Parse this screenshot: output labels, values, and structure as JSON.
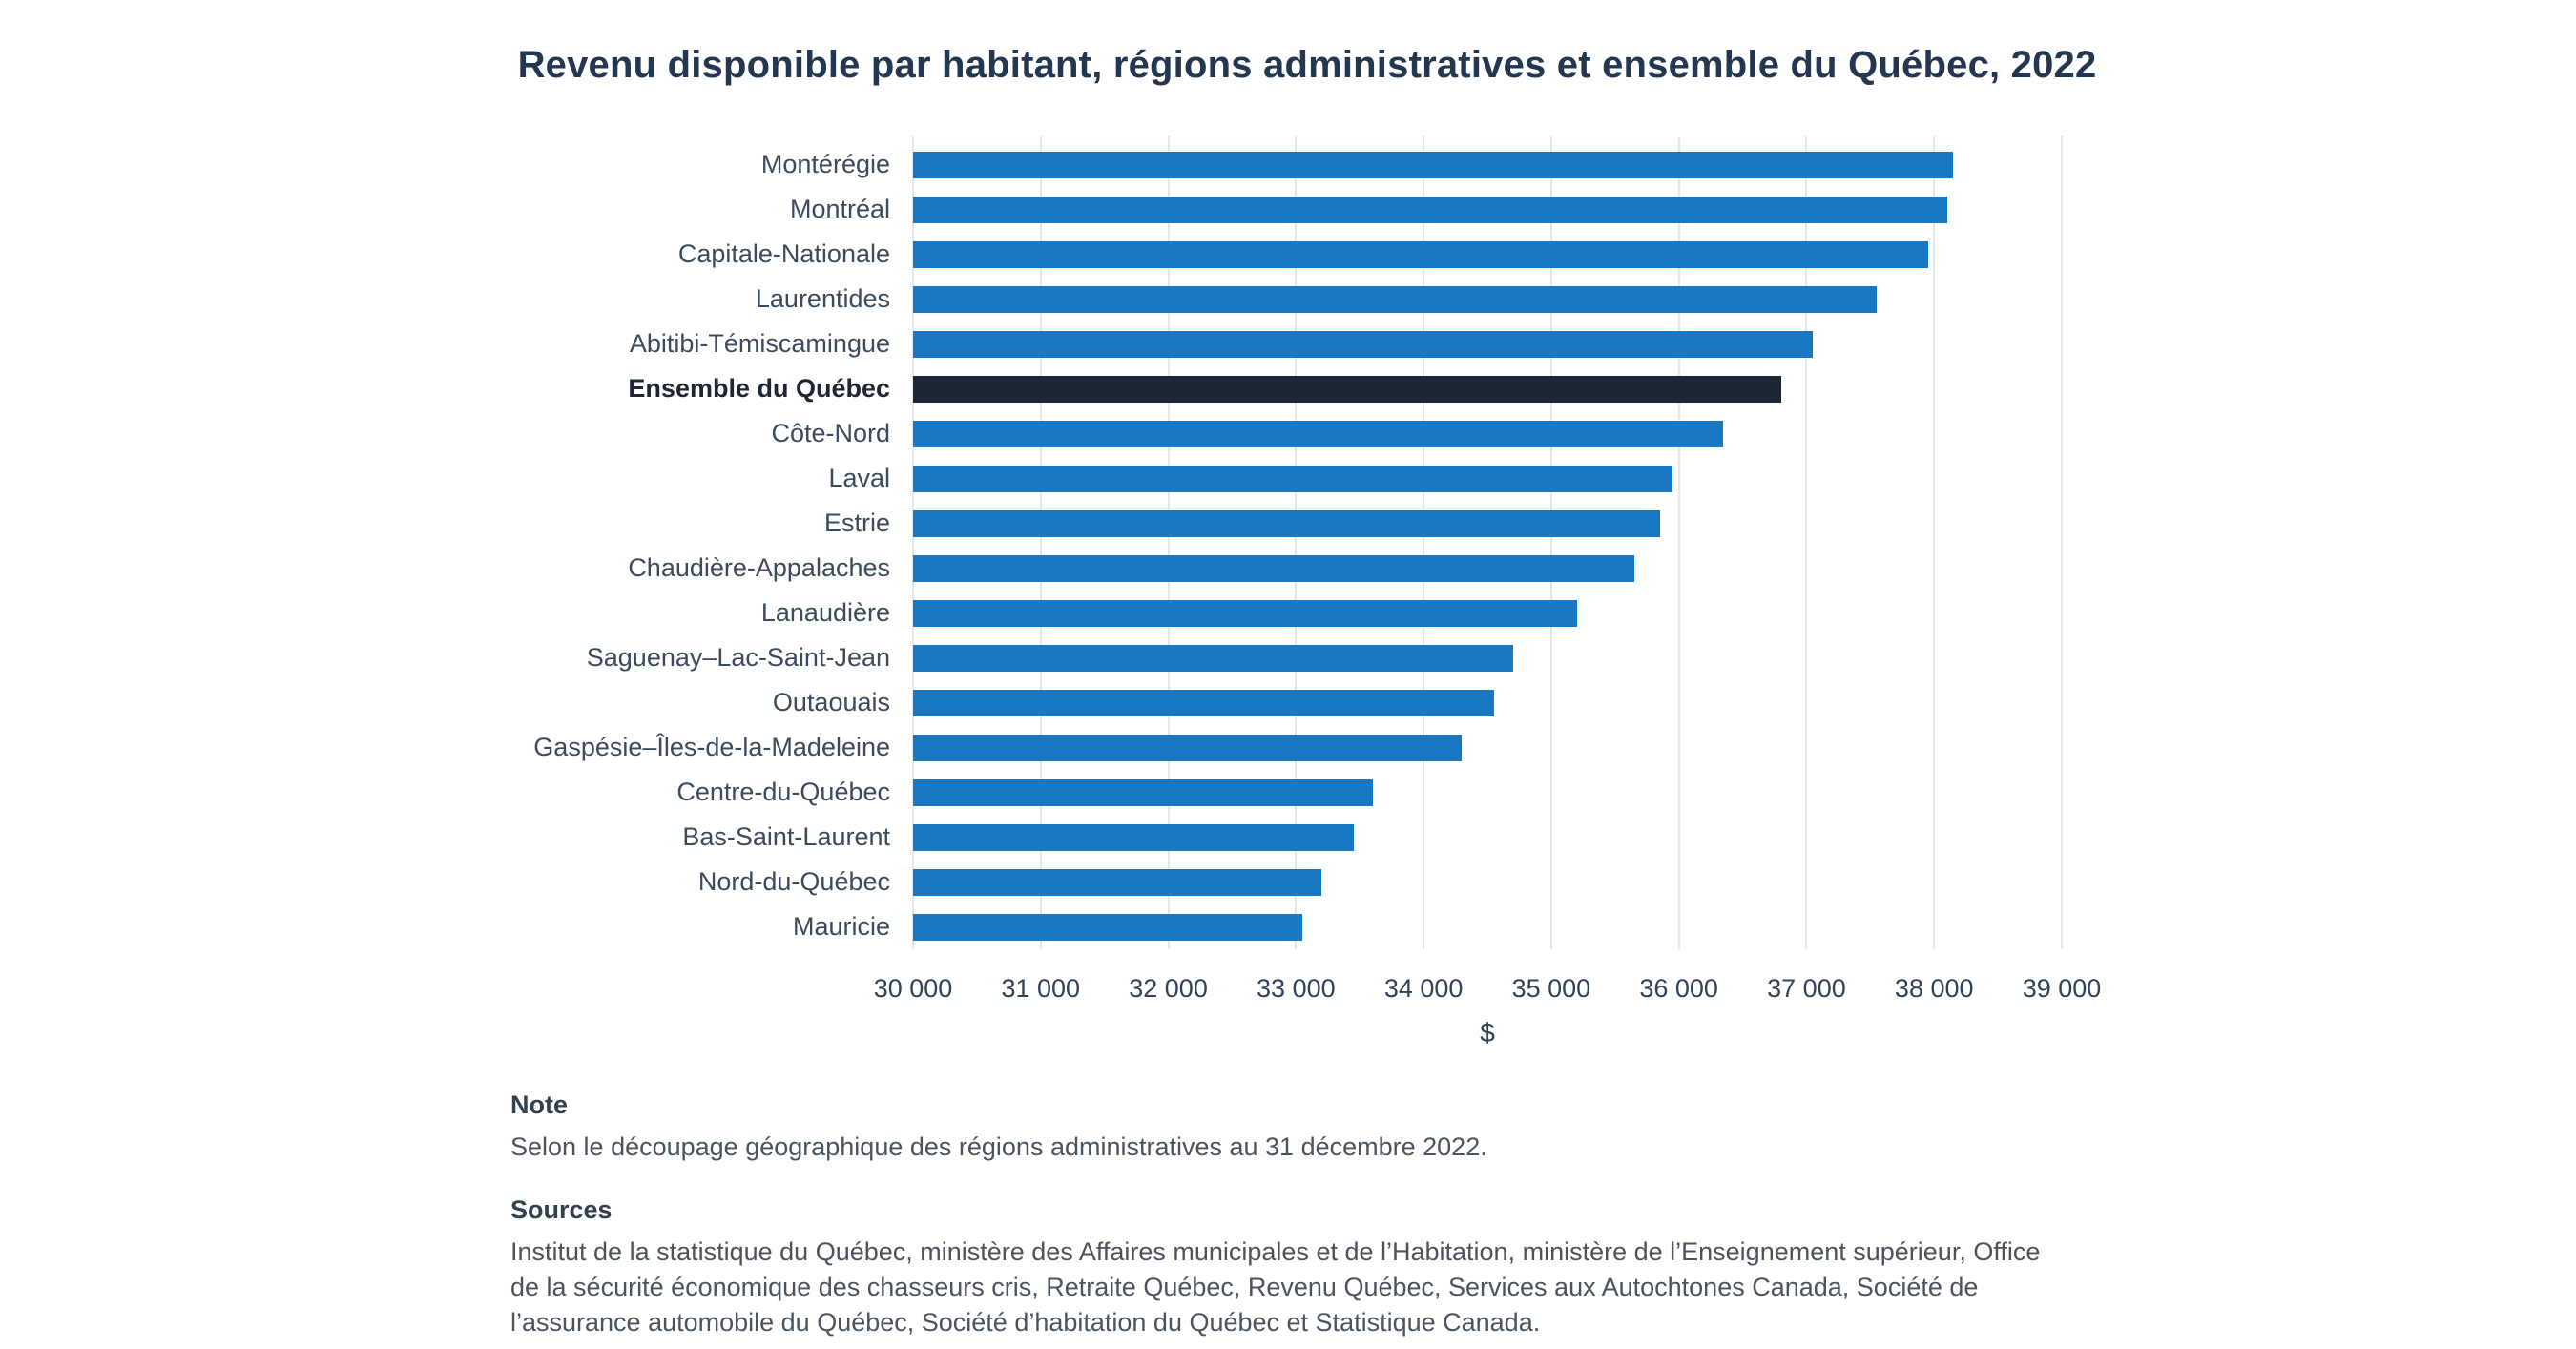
{
  "chart_data": {
    "type": "bar",
    "orientation": "horizontal",
    "title": "Revenu disponible par habitant, régions administratives et ensemble du Québec, 2022",
    "xlabel": "$",
    "xlim": [
      30000,
      39000
    ],
    "grid": true,
    "legend": "none",
    "bar_color": "#1a78c2",
    "highlight_color": "#1c2733",
    "x_tick_labels": [
      "30 000",
      "31 000",
      "32 000",
      "33 000",
      "34 000",
      "35 000",
      "36 000",
      "37 000",
      "38 000",
      "39 000"
    ],
    "regions": [
      {
        "name": "Montérégie",
        "value": 38150,
        "emphasis": false
      },
      {
        "name": "Montréal",
        "value": 38100,
        "emphasis": false
      },
      {
        "name": "Capitale-Nationale",
        "value": 37950,
        "emphasis": false
      },
      {
        "name": "Laurentides",
        "value": 37550,
        "emphasis": false
      },
      {
        "name": "Abitibi-Témiscamingue",
        "value": 37050,
        "emphasis": false
      },
      {
        "name": "Ensemble du Québec",
        "value": 36800,
        "emphasis": true
      },
      {
        "name": "Côte-Nord",
        "value": 36350,
        "emphasis": false
      },
      {
        "name": "Laval",
        "value": 35950,
        "emphasis": false
      },
      {
        "name": "Estrie",
        "value": 35850,
        "emphasis": false
      },
      {
        "name": "Chaudière-Appalaches",
        "value": 35650,
        "emphasis": false
      },
      {
        "name": "Lanaudière",
        "value": 35200,
        "emphasis": false
      },
      {
        "name": "Saguenay–Lac-Saint-Jean",
        "value": 34700,
        "emphasis": false
      },
      {
        "name": "Outaouais",
        "value": 34550,
        "emphasis": false
      },
      {
        "name": "Gaspésie–Îles-de-la-Madeleine",
        "value": 34300,
        "emphasis": false
      },
      {
        "name": "Centre-du-Québec",
        "value": 33600,
        "emphasis": false
      },
      {
        "name": "Bas-Saint-Laurent",
        "value": 33450,
        "emphasis": false
      },
      {
        "name": "Nord-du-Québec",
        "value": 33200,
        "emphasis": false
      },
      {
        "name": "Mauricie",
        "value": 33050,
        "emphasis": false
      }
    ]
  },
  "notes": {
    "note_heading": "Note",
    "note_text": "Selon le découpage géographique des régions administratives au 31 décembre 2022.",
    "sources_heading": "Sources",
    "sources_text": "Institut de la statistique du Québec, ministère des Affaires municipales et de l’Habitation, ministère de l’Enseignement supérieur, Office de la sécurité économique des chasseurs cris, Retraite Québec, Revenu Québec, Services aux Autochtones Canada, Société de l’assurance automobile du Québec, Société d’habitation du Québec et Statistique Canada."
  }
}
